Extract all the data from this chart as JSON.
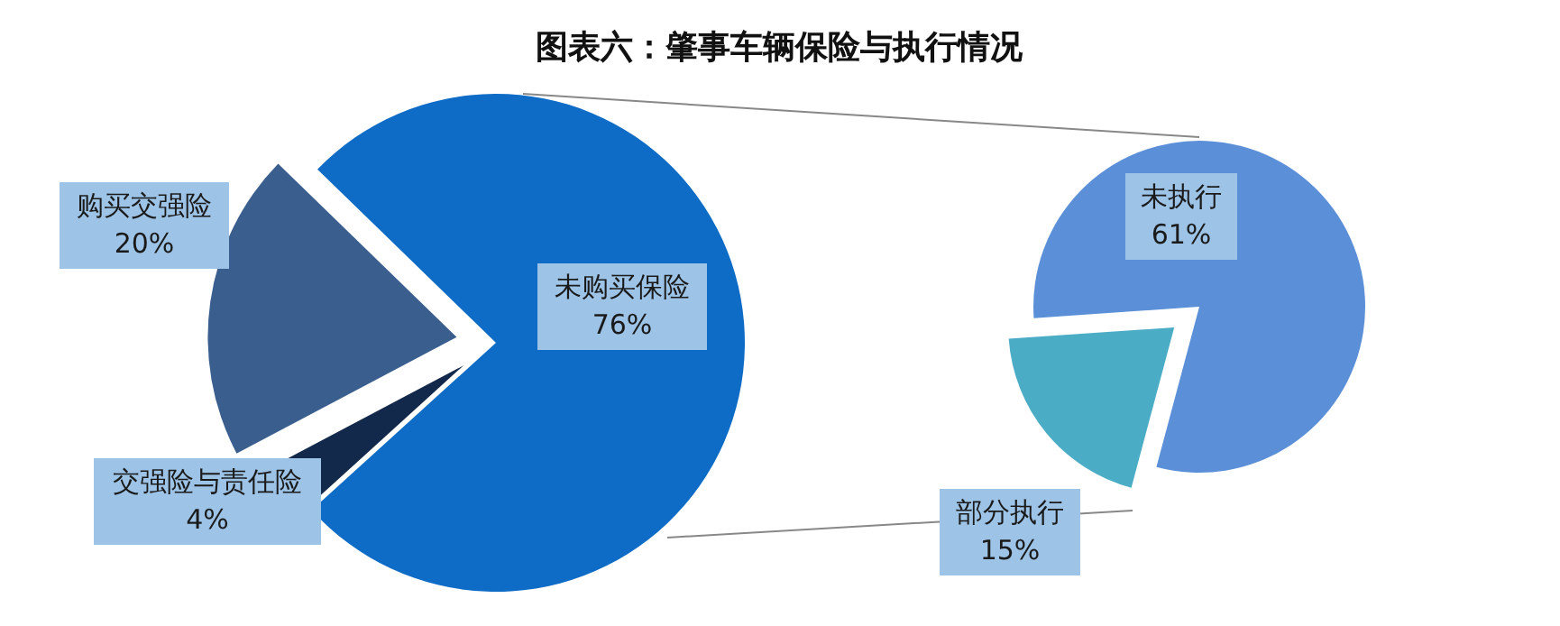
{
  "chart_data": [
    {
      "type": "pie",
      "title": "图表六：肇事车辆保险与执行情况",
      "categories": [
        "未购买保险",
        "交强险与责任险",
        "购买交强险"
      ],
      "values": [
        76,
        4,
        20
      ],
      "value_labels": [
        "76%",
        "4%",
        "20%"
      ],
      "colors": [
        "#0f6cc6",
        "#13294b",
        "#3a5f8f"
      ]
    },
    {
      "type": "pie",
      "categories": [
        "未执行",
        "部分执行"
      ],
      "values": [
        61,
        15
      ],
      "value_labels": [
        "61%",
        "15%"
      ],
      "colors": [
        "#5b90d8",
        "#4bacc6"
      ]
    }
  ]
}
